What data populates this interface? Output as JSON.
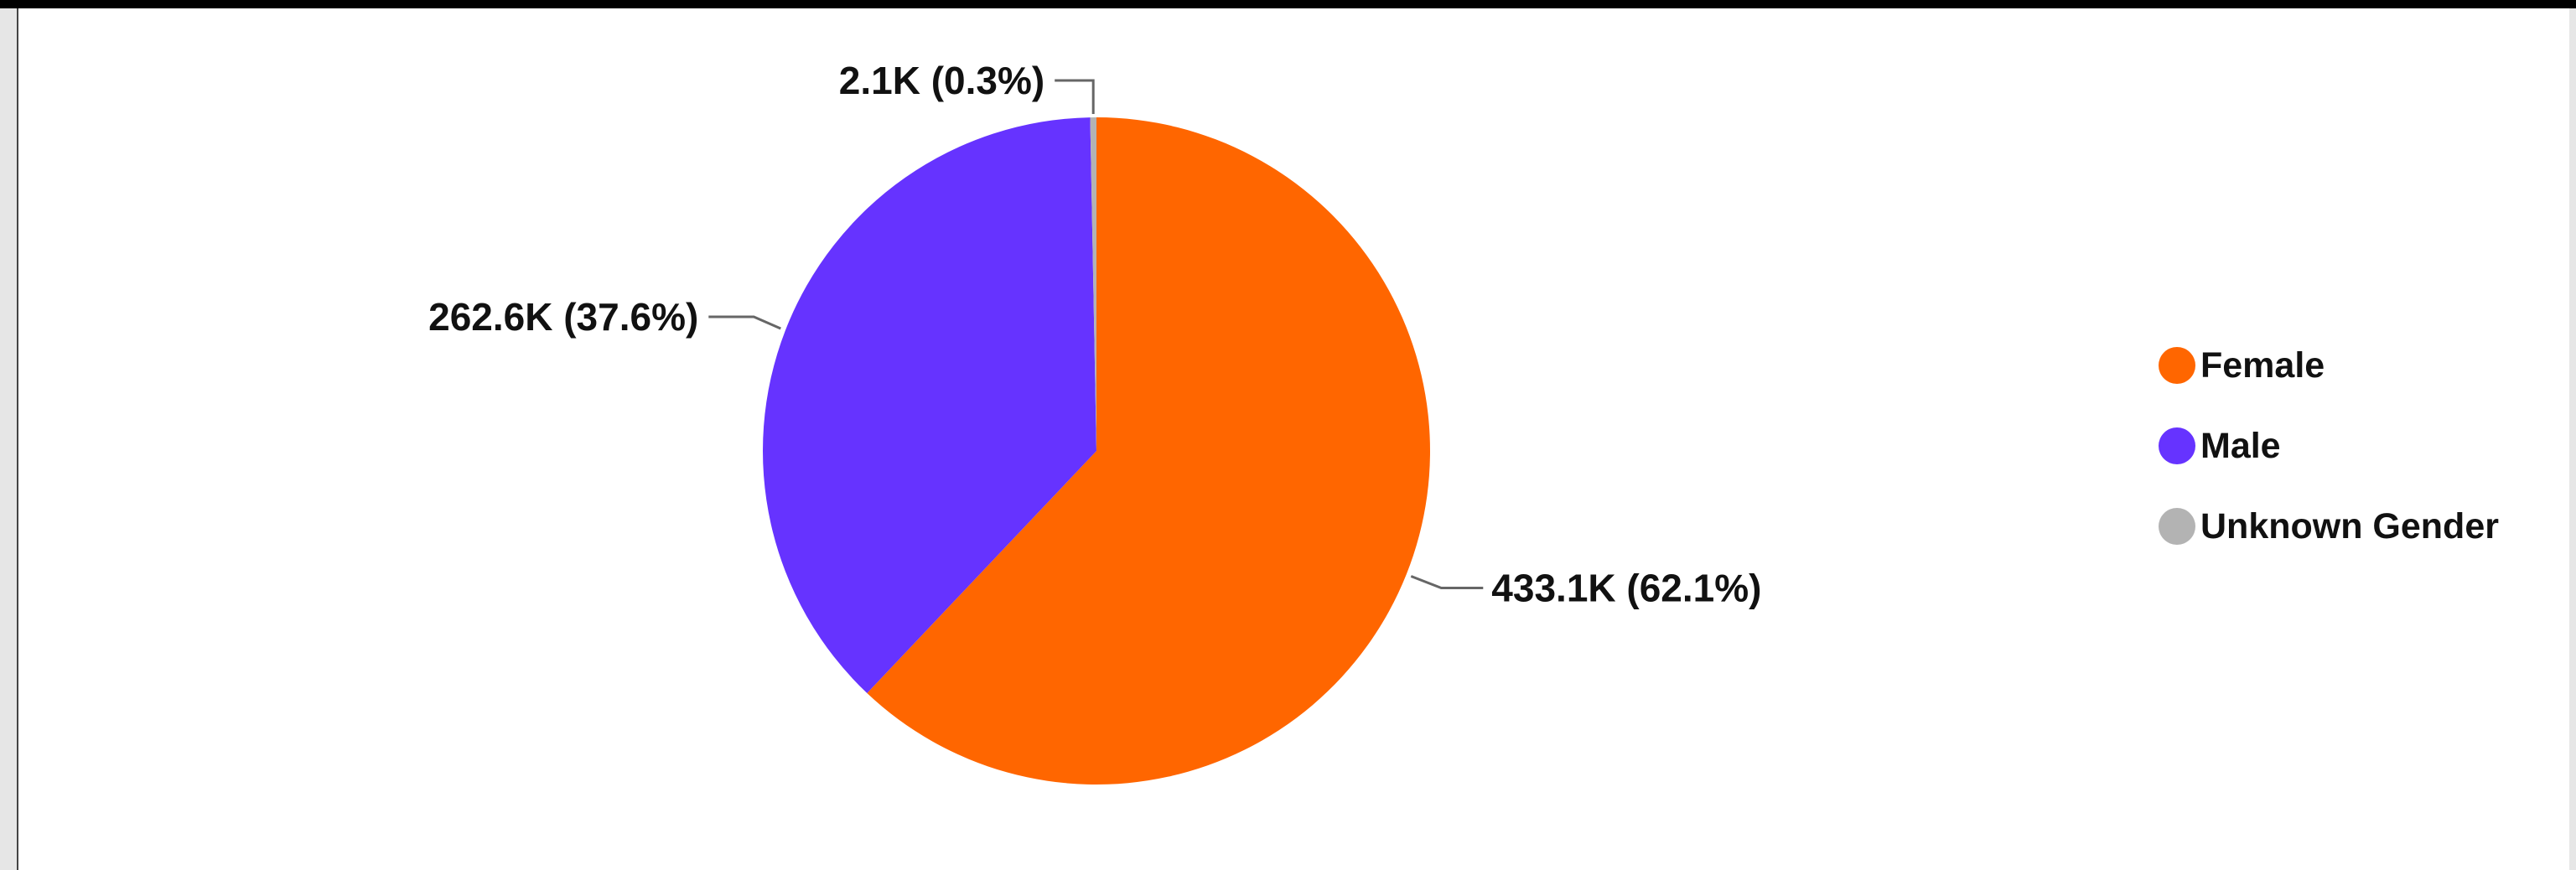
{
  "chart_data": {
    "type": "pie",
    "slices": [
      {
        "name": "Female",
        "value": 433.1,
        "label": "433.1K (62.1%)",
        "color": "#FF6600"
      },
      {
        "name": "Male",
        "value": 262.6,
        "label": "262.6K (37.6%)",
        "color": "#6633FF"
      },
      {
        "name": "Unknown Gender",
        "value": 2.1,
        "label": "2.1K (0.3%)",
        "color": "#B3B3B3"
      }
    ],
    "value_units": "thousands",
    "legend_position": "right"
  },
  "legend": {
    "items": [
      {
        "label": "Female",
        "color": "#FF6600"
      },
      {
        "label": "Male",
        "color": "#6633FF"
      },
      {
        "label": "Unknown Gender",
        "color": "#B3B3B3"
      }
    ]
  }
}
